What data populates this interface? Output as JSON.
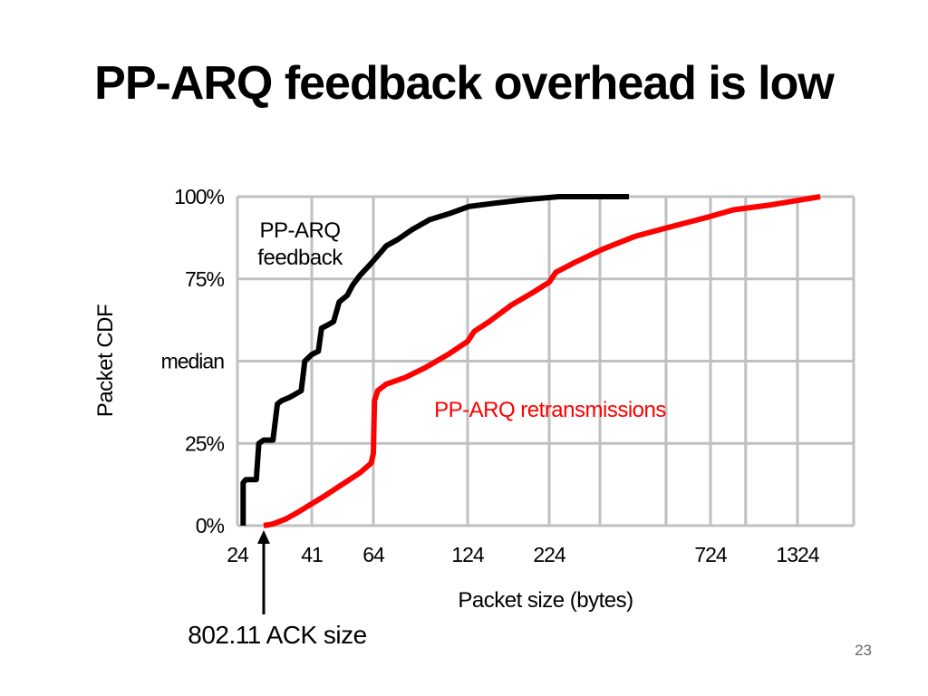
{
  "slide": {
    "title": "PP-ARQ feedback overhead is low",
    "page_number": "23"
  },
  "chart_data": {
    "type": "line",
    "xlabel": "Packet size (bytes)",
    "ylabel": "Packet CDF",
    "x_scale": "log",
    "x_ticks": [
      24,
      41,
      64,
      124,
      224,
      724,
      1324
    ],
    "y_ticks": [
      0,
      25,
      50,
      75,
      100
    ],
    "y_tick_labels": [
      "0%",
      "25%",
      "median",
      "75%",
      "100%"
    ],
    "ylim": [
      0,
      100
    ],
    "grid": true,
    "series": [
      {
        "name": "PP-ARQ feedback",
        "color": "#000000",
        "label_lines": [
          "PP-ARQ",
          "feedback"
        ],
        "points": [
          [
            25,
            0
          ],
          [
            25,
            13
          ],
          [
            25.5,
            14
          ],
          [
            27.5,
            14
          ],
          [
            28,
            25
          ],
          [
            29,
            26
          ],
          [
            31,
            26
          ],
          [
            32,
            37
          ],
          [
            33,
            38
          ],
          [
            35,
            39
          ],
          [
            38,
            41
          ],
          [
            39,
            50
          ],
          [
            41,
            52
          ],
          [
            43,
            53
          ],
          [
            44,
            60
          ],
          [
            46,
            61
          ],
          [
            48,
            62
          ],
          [
            50,
            68
          ],
          [
            53,
            70
          ],
          [
            55,
            73
          ],
          [
            58,
            76
          ],
          [
            62,
            79
          ],
          [
            66,
            82
          ],
          [
            70,
            85
          ],
          [
            76,
            87
          ],
          [
            84,
            90
          ],
          [
            95,
            93
          ],
          [
            110,
            95
          ],
          [
            125,
            97
          ],
          [
            150,
            98
          ],
          [
            185,
            99
          ],
          [
            240,
            100
          ],
          [
            400,
            100
          ]
        ]
      },
      {
        "name": "PP-ARQ retransmissions",
        "color": "#ff0000",
        "label_lines": [
          "PP-ARQ retransmissions"
        ],
        "points": [
          [
            29,
            0
          ],
          [
            31,
            0.5
          ],
          [
            34,
            2
          ],
          [
            37,
            4
          ],
          [
            40,
            6
          ],
          [
            45,
            9
          ],
          [
            52,
            13
          ],
          [
            58,
            16
          ],
          [
            63,
            19
          ],
          [
            64,
            22
          ],
          [
            64.5,
            38
          ],
          [
            66,
            41
          ],
          [
            70,
            43
          ],
          [
            80,
            45
          ],
          [
            92,
            48
          ],
          [
            108,
            52
          ],
          [
            124,
            56
          ],
          [
            130,
            59
          ],
          [
            145,
            62
          ],
          [
            170,
            67
          ],
          [
            200,
            71
          ],
          [
            224,
            74
          ],
          [
            235,
            77
          ],
          [
            270,
            80
          ],
          [
            330,
            84
          ],
          [
            420,
            88
          ],
          [
            550,
            91
          ],
          [
            724,
            94
          ],
          [
            850,
            96
          ],
          [
            1100,
            97.5
          ],
          [
            1550,
            100
          ]
        ]
      }
    ],
    "annotations": [
      {
        "text": "802.11 ACK size",
        "x": 29,
        "arrow": true
      }
    ]
  }
}
